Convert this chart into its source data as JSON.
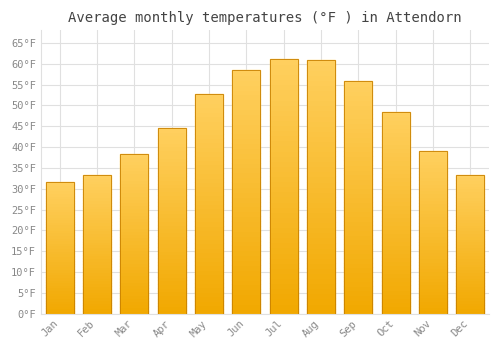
{
  "months": [
    "Jan",
    "Feb",
    "Mar",
    "Apr",
    "May",
    "Jun",
    "Jul",
    "Aug",
    "Sep",
    "Oct",
    "Nov",
    "Dec"
  ],
  "values": [
    31.5,
    33.3,
    38.3,
    44.6,
    52.7,
    58.5,
    61.2,
    61.0,
    55.8,
    48.4,
    39.0,
    33.4
  ],
  "bar_color_bottom": "#F5A800",
  "bar_color_top": "#FFD060",
  "bar_edge_color": "#C88000",
  "background_color": "#FFFFFF",
  "title": "Average monthly temperatures (°F ) in Attendorn",
  "title_fontsize": 10,
  "title_color": "#444444",
  "tick_label_color": "#888888",
  "grid_color": "#E0E0E0",
  "ylim": [
    0,
    68
  ],
  "yticks": [
    0,
    5,
    10,
    15,
    20,
    25,
    30,
    35,
    40,
    45,
    50,
    55,
    60,
    65
  ],
  "ytick_labels": [
    "0°F",
    "5°F",
    "10°F",
    "15°F",
    "20°F",
    "25°F",
    "30°F",
    "35°F",
    "40°F",
    "45°F",
    "50°F",
    "55°F",
    "60°F",
    "65°F"
  ],
  "bar_width": 0.75
}
